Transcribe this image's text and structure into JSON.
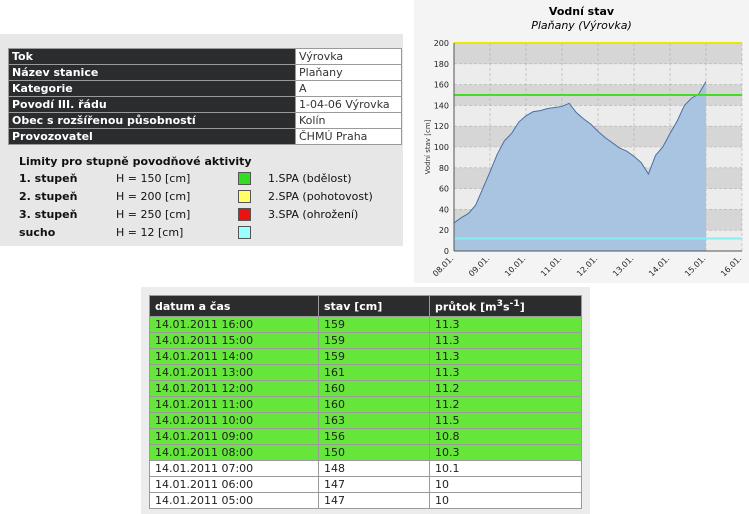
{
  "station": {
    "rows": [
      {
        "label": "Tok",
        "value": "Výrovka"
      },
      {
        "label": "Název stanice",
        "value": "Plaňany"
      },
      {
        "label": "Kategorie",
        "value": "A"
      },
      {
        "label": "Povodí III. řádu",
        "value": "1-04-06 Výrovka"
      },
      {
        "label": "Obec s rozšířenou působností",
        "value": "Kolín"
      },
      {
        "label": "Provozovatel",
        "value": "ČHMÚ Praha"
      }
    ]
  },
  "limits": {
    "title": "Limity pro stupně povodňové aktivity",
    "rows": [
      {
        "level": "1. stupeň",
        "h": "H = 150 [cm]",
        "color": "#33dd22",
        "spa": "1.SPA (bdělost)"
      },
      {
        "level": "2. stupeň",
        "h": "H = 200 [cm]",
        "color": "#ffff66",
        "spa": "2.SPA (pohotovost)"
      },
      {
        "level": "3. stupeň",
        "h": "H = 250 [cm]",
        "color": "#ee1111",
        "spa": "3.SPA (ohrožení)"
      },
      {
        "level": "sucho",
        "h": "H = 12 [cm]",
        "color": "#99ffff",
        "spa": ""
      }
    ]
  },
  "chart": {
    "title": "Vodní stav",
    "subtitle": "Plaňany (Výrovka)",
    "ylabel": "Vodní stav [cm]"
  },
  "chart_data": {
    "type": "area",
    "title": "Vodní stav",
    "subtitle": "Plaňany (Výrovka)",
    "ylabel": "Vodní stav [cm]",
    "ylim": [
      0,
      200
    ],
    "yticks": [
      0,
      20,
      40,
      60,
      80,
      100,
      120,
      140,
      160,
      180,
      200
    ],
    "xticks": [
      "08.01.",
      "09.01.",
      "10.01.",
      "11.01.",
      "12.01.",
      "13.01.",
      "14.01.",
      "15.01.",
      "16.01."
    ],
    "xlim": [
      0,
      8
    ],
    "grid": true,
    "limit_lines": [
      {
        "name": "2.SPA",
        "value": 200,
        "color": "#e8e800"
      },
      {
        "name": "1.SPA",
        "value": 150,
        "color": "#44dd22"
      },
      {
        "name": "sucho",
        "value": 12,
        "color": "#88eeee"
      }
    ],
    "series": [
      {
        "x": [
          0,
          0.2,
          0.4,
          0.6,
          0.8,
          1.0,
          1.2,
          1.4,
          1.6,
          1.8,
          2.0,
          2.2,
          2.4,
          2.6,
          2.8,
          3.0,
          3.2,
          3.4,
          3.6,
          3.8,
          4.0,
          4.2,
          4.4,
          4.6,
          4.8,
          5.0,
          5.2,
          5.4,
          5.6,
          5.8,
          6.0,
          6.2,
          6.4,
          6.6,
          6.8,
          7.0
        ],
        "y": [
          27,
          32,
          36,
          44,
          60,
          76,
          93,
          106,
          113,
          124,
          130,
          134,
          135,
          137,
          138,
          139,
          142,
          133,
          127,
          122,
          115,
          109,
          104,
          99,
          96,
          91,
          85,
          74,
          92,
          100,
          113,
          125,
          140,
          147,
          151,
          163
        ]
      }
    ]
  },
  "table": {
    "headers": {
      "col1": "datum a čas",
      "col2": "stav [cm]",
      "col3_main": "průtok [m",
      "col3_sup1": "3",
      "col3_mid": "s",
      "col3_sup2": "-1",
      "col3_end": "]"
    },
    "rows": [
      {
        "datetime": "14.01.2011 16:00",
        "stav": "159",
        "prutok": "11.3",
        "warn": true
      },
      {
        "datetime": "14.01.2011 15:00",
        "stav": "159",
        "prutok": "11.3",
        "warn": true
      },
      {
        "datetime": "14.01.2011 14:00",
        "stav": "159",
        "prutok": "11.3",
        "warn": true
      },
      {
        "datetime": "14.01.2011 13:00",
        "stav": "161",
        "prutok": "11.3",
        "warn": true
      },
      {
        "datetime": "14.01.2011 12:00",
        "stav": "160",
        "prutok": "11.2",
        "warn": true
      },
      {
        "datetime": "14.01.2011 11:00",
        "stav": "160",
        "prutok": "11.2",
        "warn": true
      },
      {
        "datetime": "14.01.2011 10:00",
        "stav": "163",
        "prutok": "11.5",
        "warn": true
      },
      {
        "datetime": "14.01.2011 09:00",
        "stav": "156",
        "prutok": "10.8",
        "warn": true
      },
      {
        "datetime": "14.01.2011 08:00",
        "stav": "150",
        "prutok": "10.3",
        "warn": true
      },
      {
        "datetime": "14.01.2011 07:00",
        "stav": "148",
        "prutok": "10.1",
        "warn": false
      },
      {
        "datetime": "14.01.2011 06:00",
        "stav": "147",
        "prutok": "10",
        "warn": false
      },
      {
        "datetime": "14.01.2011 05:00",
        "stav": "147",
        "prutok": "10",
        "warn": false
      }
    ]
  }
}
